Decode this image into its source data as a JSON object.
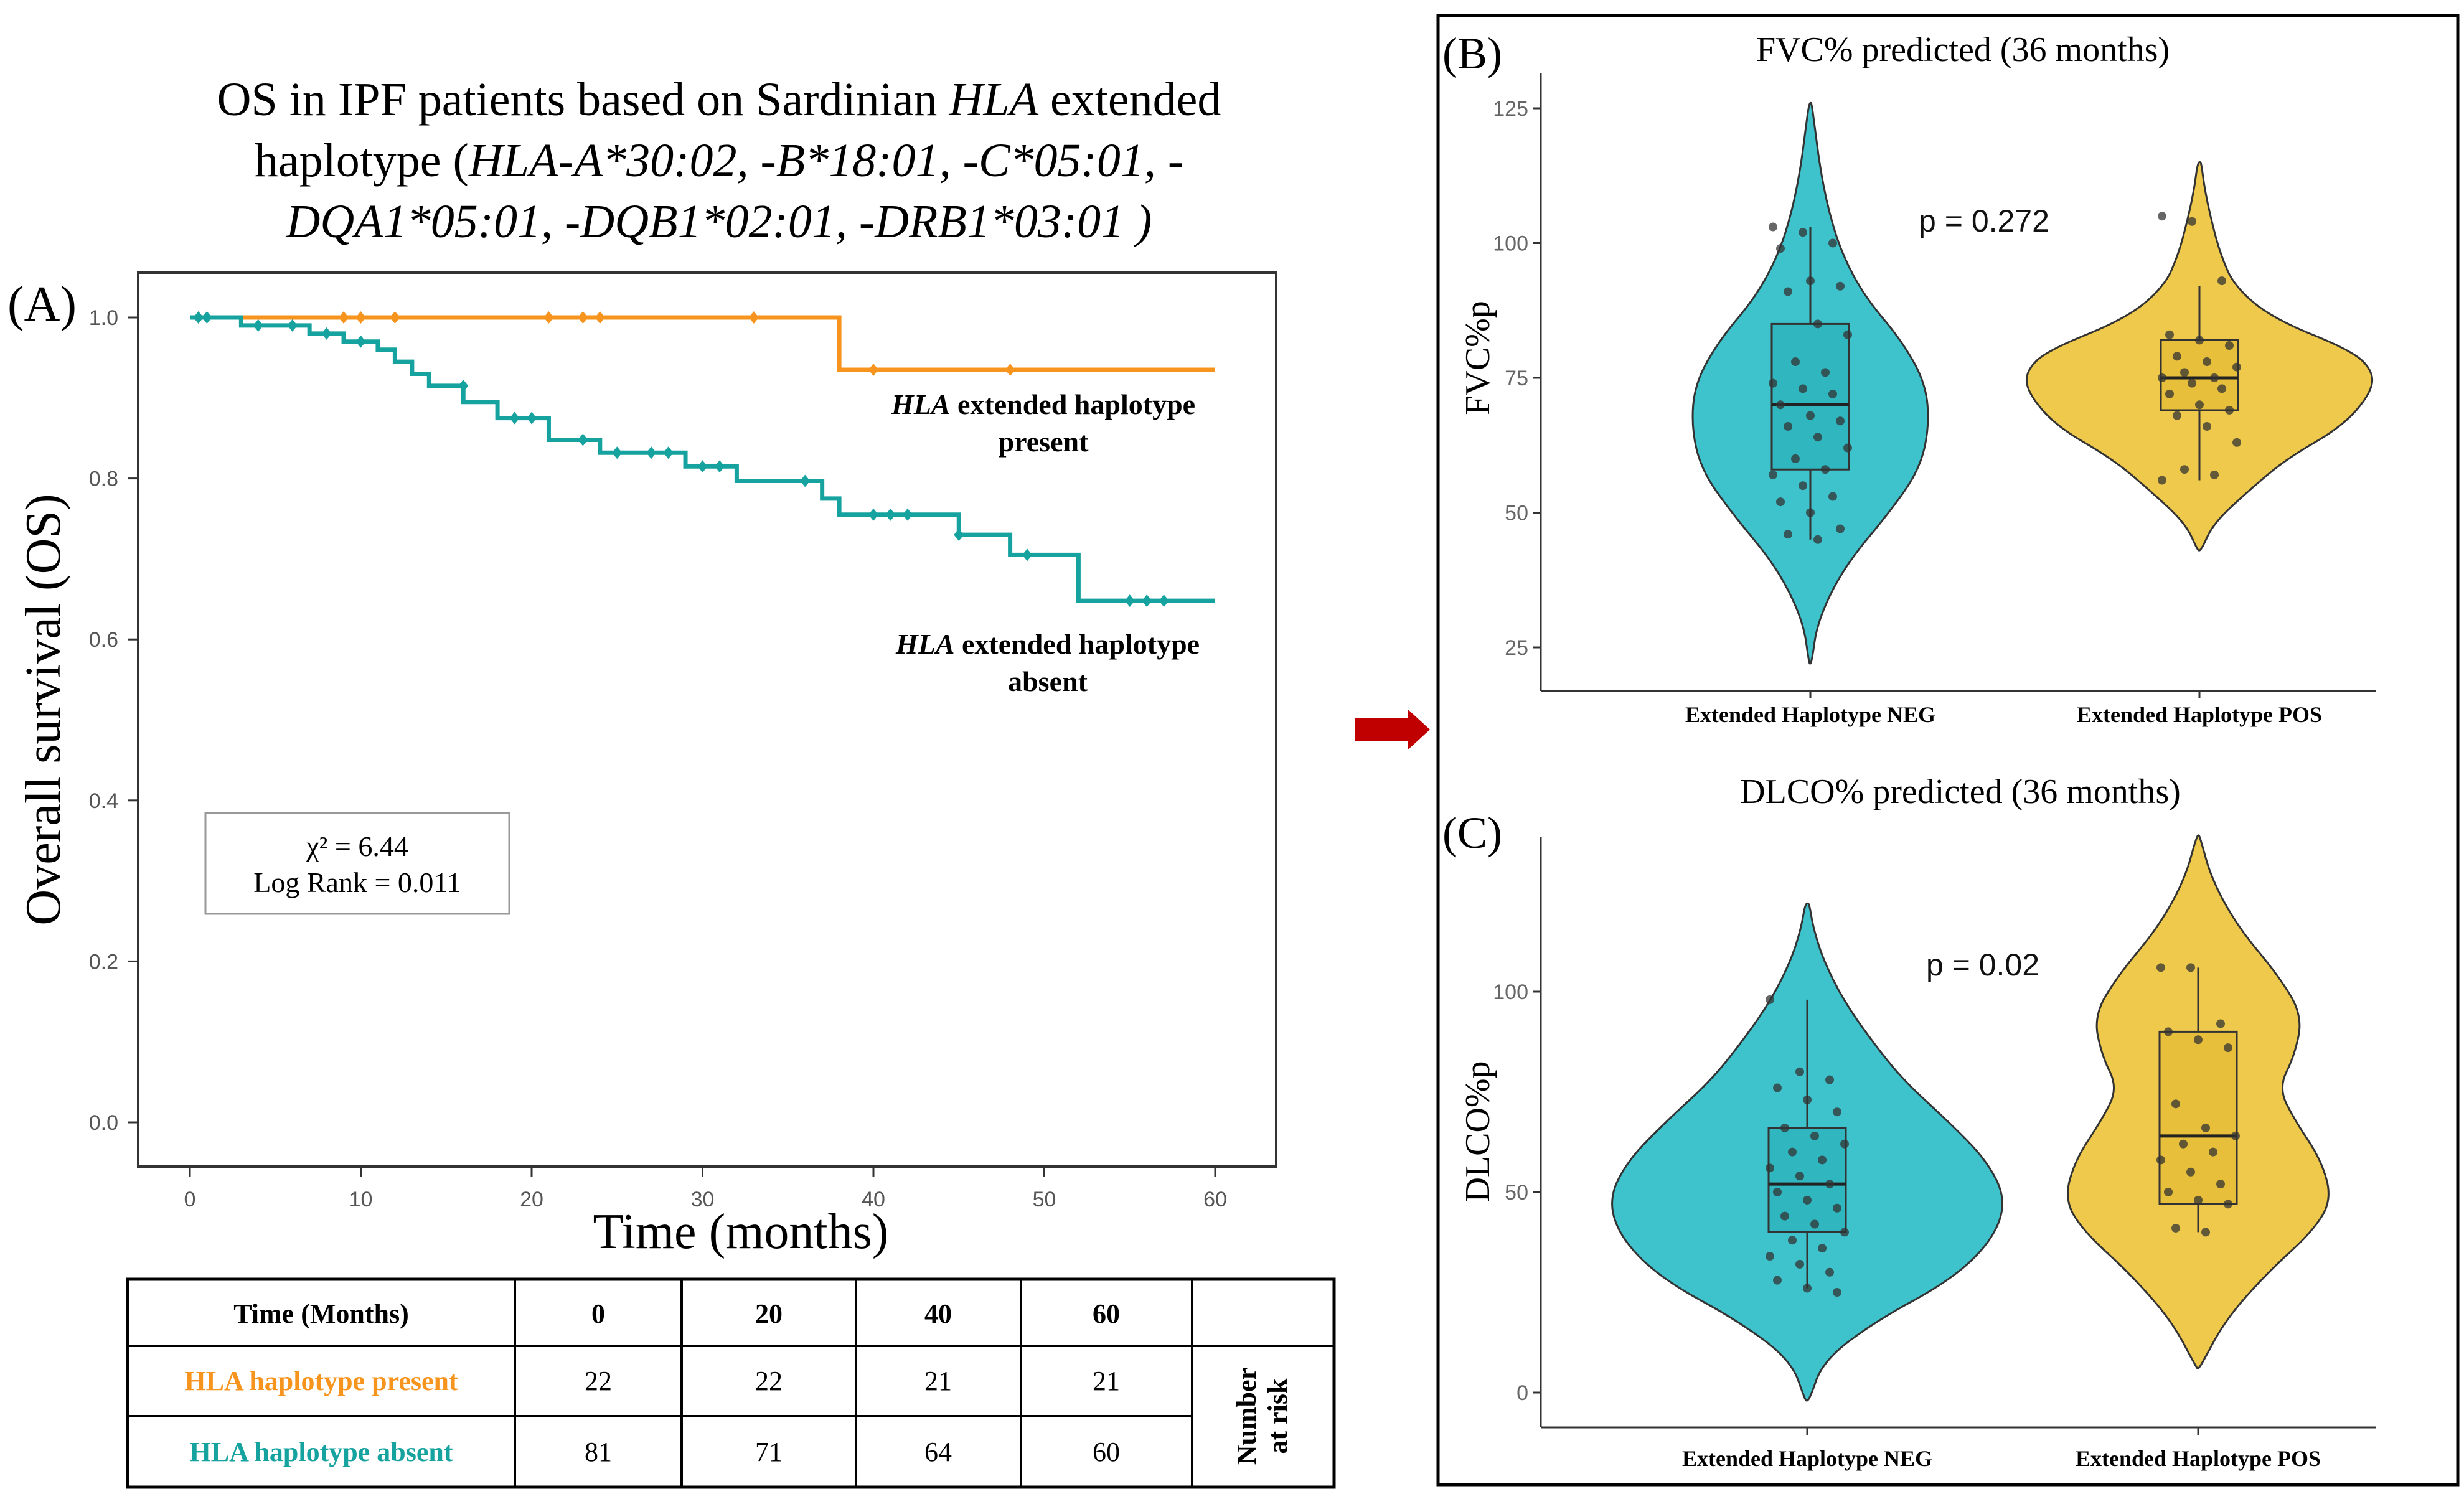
{
  "colors": {
    "present": "#F7941D",
    "absent": "#16A39F",
    "violin_neg": "#3EC3CC",
    "violin_pos": "#EFC94C",
    "arrow": "#C00000",
    "grid_tick_text": "#666666"
  },
  "panel_a": {
    "label": "(A)",
    "title_line1_prefix": "OS in IPF patients based on Sardinian ",
    "title_line1_italic": "HLA",
    "title_line1_suffix": " extended",
    "title_line2_prefix": "haplotype (",
    "title_line2_italic": "HLA-A*30:02, -B*18:01, -C*05:01, -",
    "title_line3_italic": "DQA1*05:01, -DQB1*02:01, -DRB1*03:01 )",
    "stats_line1": "χ² = 6.44",
    "stats_line2": "Log Rank = 0.011",
    "present_label_italic": "HLA",
    "present_label_rest": " extended haplotype",
    "present_label_line2": "present",
    "absent_label_italic": "HLA",
    "absent_label_rest": " extended haplotype",
    "absent_label_line2": "absent"
  },
  "chart_data": [
    {
      "type": "line",
      "title": "OS in IPF patients based on Sardinian HLA extended haplotype (HLA-A*30:02, -B*18:01, -C*05:01, -DQA1*05:01, -DQB1*02:01, -DRB1*03:01 )",
      "xlabel": "Time (months)",
      "ylabel": "Overall survival (OS)",
      "xlim": [
        0,
        60
      ],
      "ylim": [
        0,
        1.0
      ],
      "xticks": [
        0,
        10,
        20,
        30,
        40,
        50,
        60
      ],
      "yticks": [
        0.0,
        0.2,
        0.4,
        0.6,
        0.8,
        1.0
      ],
      "series": [
        {
          "name": "HLA extended haplotype present",
          "step_x": [
            0,
            38,
            60
          ],
          "step_y": [
            1.0,
            0.935,
            0.935
          ],
          "censor_x": [
            0.5,
            9,
            10,
            12,
            21,
            23,
            24,
            33,
            40,
            48
          ],
          "censor_y": [
            1.0,
            1.0,
            1.0,
            1.0,
            1.0,
            1.0,
            1.0,
            1.0,
            0.935,
            0.935
          ]
        },
        {
          "name": "HLA extended haplotype absent",
          "step_x": [
            0,
            3,
            7,
            9,
            11,
            12,
            13,
            14,
            16,
            18,
            21,
            24,
            29,
            32,
            37,
            38,
            45,
            48,
            52,
            60
          ],
          "step_y": [
            1.0,
            0.99,
            0.98,
            0.97,
            0.96,
            0.945,
            0.93,
            0.915,
            0.895,
            0.875,
            0.848,
            0.832,
            0.815,
            0.797,
            0.775,
            0.755,
            0.73,
            0.705,
            0.648,
            0.648
          ],
          "censor_x": [
            0.5,
            1,
            4,
            6,
            8,
            10,
            16,
            19,
            20,
            23,
            25,
            27,
            28,
            30,
            31,
            36,
            40,
            41,
            42,
            45,
            49,
            55,
            56,
            57
          ],
          "censor_y": [
            1.0,
            1.0,
            0.99,
            0.99,
            0.98,
            0.97,
            0.915,
            0.875,
            0.875,
            0.848,
            0.832,
            0.832,
            0.832,
            0.815,
            0.815,
            0.797,
            0.755,
            0.755,
            0.755,
            0.73,
            0.705,
            0.648,
            0.648,
            0.648
          ]
        }
      ]
    },
    {
      "type": "violin",
      "label": "(B)",
      "title": "FVC% predicted (36 months)",
      "ylabel": "FVC%p",
      "yticks": [
        25,
        50,
        75,
        100,
        125
      ],
      "ylim": [
        18,
        128
      ],
      "annotation": "p = 0.272",
      "groups": [
        {
          "name": "Extended Haplotype NEG",
          "density_y": [
            22,
            30,
            40,
            50,
            58,
            66,
            74,
            82,
            90,
            98,
            106,
            114,
            121,
            126
          ],
          "density_w": [
            0.01,
            0.06,
            0.28,
            0.65,
            0.9,
            0.98,
            0.95,
            0.75,
            0.45,
            0.26,
            0.15,
            0.08,
            0.04,
            0.01
          ],
          "box": {
            "q1": 58,
            "median": 70,
            "q3": 85,
            "lo": 45,
            "hi": 103
          },
          "points": [
            103,
            102,
            100,
            99,
            93,
            92,
            91,
            85,
            83,
            78,
            76,
            74,
            73,
            72,
            70,
            68,
            67,
            66,
            64,
            62,
            60,
            58,
            57,
            55,
            53,
            52,
            50,
            47,
            46,
            45
          ]
        },
        {
          "name": "Extended Haplotype POS",
          "density_y": [
            43,
            48,
            54,
            60,
            66,
            72,
            76,
            80,
            86,
            92,
            98,
            104,
            110,
            115
          ],
          "density_w": [
            0.01,
            0.08,
            0.28,
            0.5,
            0.82,
            0.98,
            1.0,
            0.88,
            0.42,
            0.2,
            0.12,
            0.07,
            0.03,
            0.01
          ],
          "box": {
            "q1": 69,
            "median": 75,
            "q3": 82,
            "lo": 56,
            "hi": 92
          },
          "points": [
            105,
            104,
            93,
            83,
            82,
            81,
            79,
            78,
            77,
            76,
            75,
            75,
            74,
            73,
            72,
            70,
            69,
            68,
            66,
            63,
            58,
            57,
            56
          ]
        }
      ]
    },
    {
      "type": "violin",
      "label": "(C)",
      "title": "DLCO% predicted (36 months)",
      "ylabel": "DLCO%p",
      "yticks": [
        0,
        50,
        100
      ],
      "ylim": [
        -8,
        142
      ],
      "annotation": "p = 0.02",
      "groups": [
        {
          "name": "Extended Haplotype NEG",
          "density_y": [
            -2,
            8,
            18,
            28,
            38,
            48,
            58,
            68,
            78,
            88,
            98,
            108,
            116,
            122
          ],
          "density_w": [
            0.01,
            0.08,
            0.35,
            0.72,
            0.93,
            1.0,
            0.9,
            0.7,
            0.48,
            0.32,
            0.18,
            0.08,
            0.03,
            0.01
          ],
          "box": {
            "q1": 40,
            "median": 52,
            "q3": 66,
            "lo": 26,
            "hi": 98
          },
          "points": [
            98,
            80,
            78,
            76,
            73,
            70,
            66,
            64,
            62,
            60,
            58,
            56,
            54,
            52,
            50,
            48,
            46,
            44,
            42,
            40,
            38,
            36,
            34,
            32,
            30,
            28,
            26,
            25
          ]
        },
        {
          "name": "Extended Haplotype POS",
          "density_y": [
            6,
            18,
            30,
            40,
            48,
            58,
            68,
            76,
            84,
            94,
            104,
            116,
            128,
            139
          ],
          "density_w": [
            0.01,
            0.2,
            0.52,
            0.85,
            1.0,
            0.92,
            0.72,
            0.6,
            0.72,
            0.78,
            0.6,
            0.3,
            0.1,
            0.01
          ],
          "box": {
            "q1": 47,
            "median": 64,
            "q3": 90,
            "lo": 40,
            "hi": 106
          },
          "points": [
            106,
            106,
            92,
            90,
            88,
            86,
            72,
            66,
            64,
            62,
            60,
            58,
            55,
            52,
            50,
            48,
            47,
            41,
            40
          ]
        }
      ]
    }
  ],
  "risk_table": {
    "header": [
      "Time (Months)",
      "0",
      "20",
      "40",
      "60"
    ],
    "rows": [
      {
        "label": "HLA haplotype present",
        "values": [
          "22",
          "22",
          "21",
          "21"
        ]
      },
      {
        "label": "HLA haplotype absent",
        "values": [
          "81",
          "71",
          "64",
          "60"
        ]
      }
    ],
    "side_label_line1": "Number",
    "side_label_line2": "at risk"
  }
}
